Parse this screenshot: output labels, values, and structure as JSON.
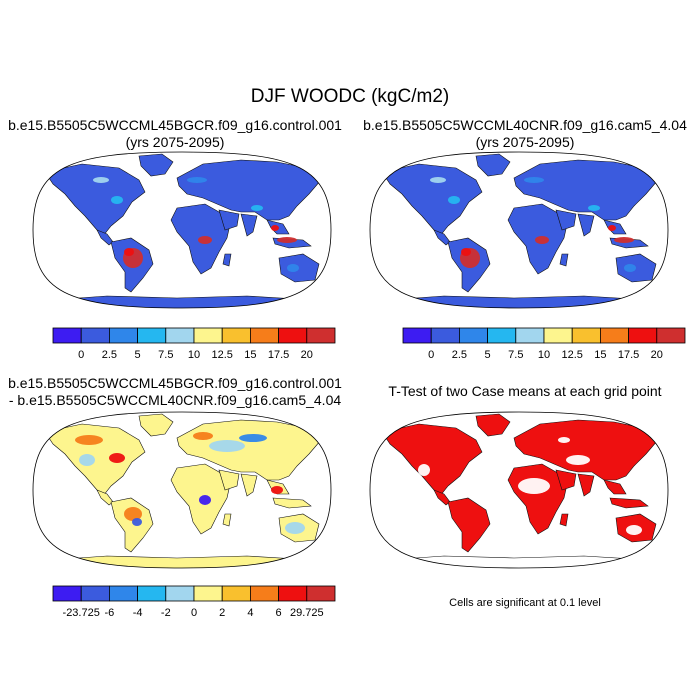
{
  "title": "DJF WOODC (kgC/m2)",
  "panels": [
    {
      "id": "control",
      "title_lines": [
        "b.e15.B5505C5WCCML45BGCR.f09_g16.control.001",
        "(yrs 2075-2095)"
      ],
      "type": "map",
      "colorbar": {
        "labels": [
          "0",
          "2.5",
          "5",
          "7.5",
          "10",
          "12.5",
          "15",
          "17.5",
          "20"
        ],
        "colors": [
          "#3d1cf2",
          "#3b5bde",
          "#2f86ea",
          "#25b7f0",
          "#a2d6ee",
          "#fdf58e",
          "#f9c02e",
          "#f67d1a",
          "#ee1010",
          "#cf2f2f"
        ]
      }
    },
    {
      "id": "cam5",
      "title_lines": [
        "b.e15.B5505C5WCCML40CNR.f09_g16.cam5_4.04",
        "(yrs 2075-2095)"
      ],
      "type": "map",
      "colorbar": {
        "labels": [
          "0",
          "2.5",
          "5",
          "7.5",
          "10",
          "12.5",
          "15",
          "17.5",
          "20"
        ],
        "colors": [
          "#3d1cf2",
          "#3b5bde",
          "#2f86ea",
          "#25b7f0",
          "#a2d6ee",
          "#fdf58e",
          "#f9c02e",
          "#f67d1a",
          "#ee1010",
          "#cf2f2f"
        ]
      }
    },
    {
      "id": "difference",
      "title_lines": [
        "b.e15.B5505C5WCCML45BGCR.f09_g16.control.001",
        "- b.e15.B5505C5WCCML40CNR.f09_g16.cam5_4.04"
      ],
      "type": "map",
      "colorbar": {
        "labels": [
          "-23.725",
          "-6",
          "-4",
          "-2",
          "0",
          "2",
          "4",
          "6",
          "29.725"
        ],
        "colors": [
          "#3d1cf2",
          "#3b5bde",
          "#2f86ea",
          "#25b7f0",
          "#a2d6ee",
          "#fdf58e",
          "#f9c02e",
          "#f67d1a",
          "#ee1010",
          "#cf2f2f"
        ]
      }
    },
    {
      "id": "ttest",
      "title_lines": [
        "T-Test of two Case means at each grid point"
      ],
      "type": "map",
      "note": "Cells are significant at 0.1 level",
      "significant_color": "#ee1010"
    }
  ],
  "chart_data": [
    {
      "type": "heatmap",
      "title": "b.e15.B5505C5WCCML45BGCR.f09_g16.control.001 (yrs 2075-2095)",
      "projection": "robinson",
      "levels": [
        0,
        2.5,
        5,
        7.5,
        10,
        12.5,
        15,
        17.5,
        20
      ]
    },
    {
      "type": "heatmap",
      "title": "b.e15.B5505C5WCCML40CNR.f09_g16.cam5_4.04 (yrs 2075-2095)",
      "projection": "robinson",
      "levels": [
        0,
        2.5,
        5,
        7.5,
        10,
        12.5,
        15,
        17.5,
        20
      ]
    },
    {
      "type": "heatmap",
      "title": "b.e15.B5505C5WCCML45BGCR.f09_g16.control.001 - b.e15.B5505C5WCCML40CNR.f09_g16.cam5_4.04",
      "projection": "robinson",
      "levels": [
        -23.725,
        -6,
        -4,
        -2,
        0,
        2,
        4,
        6,
        29.725
      ]
    },
    {
      "type": "heatmap",
      "title": "T-Test of two Case means at each grid point",
      "projection": "robinson",
      "significance_level": 0.1
    }
  ]
}
